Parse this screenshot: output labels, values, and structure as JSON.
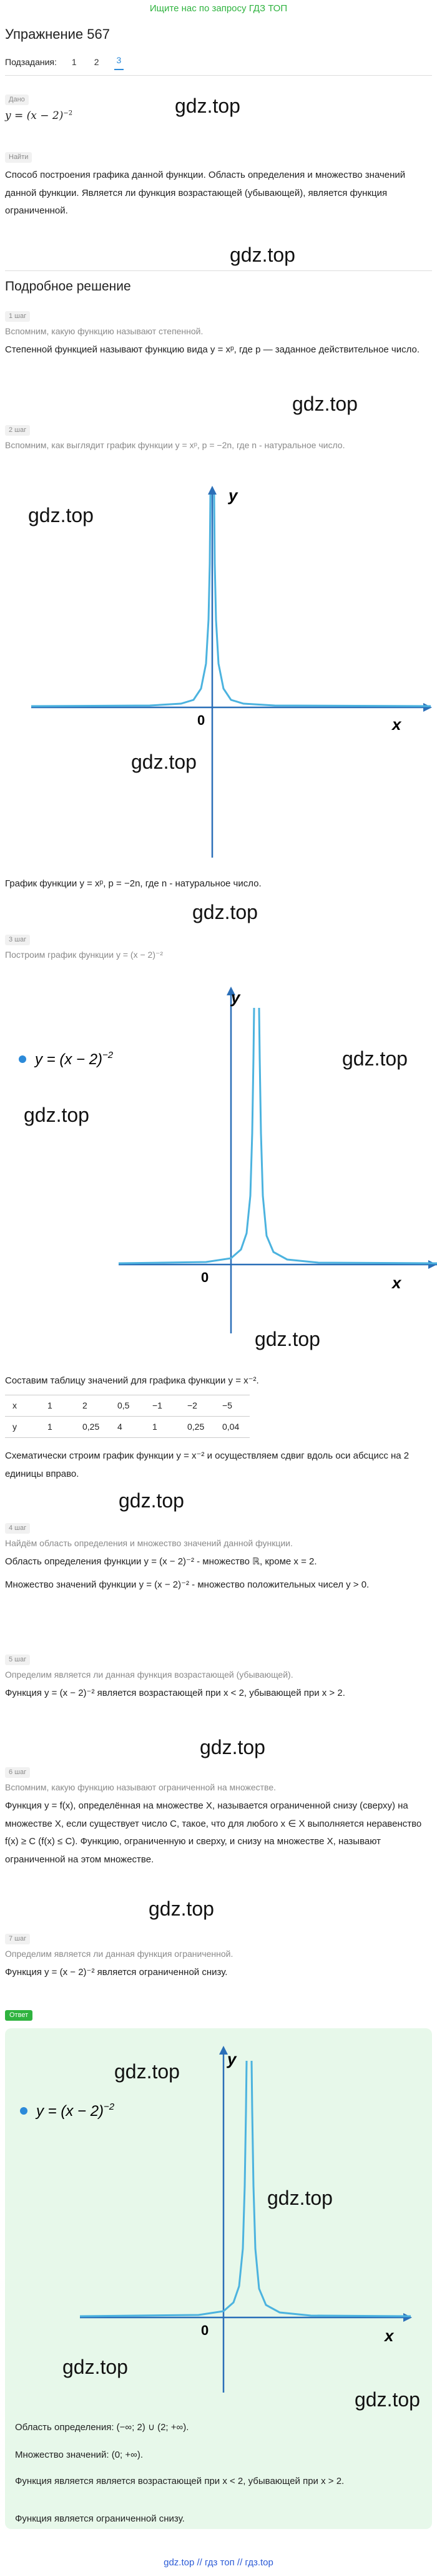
{
  "banner": "Ищите нас по запросу ГДЗ ТОП",
  "title": "Упражнение 567",
  "subtasks": {
    "label": "Подзадания:",
    "items": [
      "1",
      "2",
      "3"
    ],
    "active": "3"
  },
  "given": {
    "tag": "Дано",
    "formula": "y = (x − 2)",
    "exp": "−2"
  },
  "find": {
    "tag": "Найти",
    "text": "Способ построения графика данной функции. Область определения и множество значений данной функции. Является ли функция возрастающей (убывающей), является функция ограниченной."
  },
  "watermark": "gdz.top",
  "solution_title": "Подробное решение",
  "steps": {
    "s1": {
      "tag": "1 шаг",
      "hint": "Вспомним, какую функцию называют степенной.",
      "text": "Степенной функцией называют функцию вида y = xᵖ, где p — заданное действительное число."
    },
    "s2": {
      "tag": "2 шаг",
      "hint": "Вспомним, как выглядит график функции y = xᵖ, p = −2n, где n - натуральное число.",
      "caption": "График функции y = xᵖ, p = −2n, где n - натуральное число."
    },
    "s3": {
      "tag": "3 шаг",
      "hint": "Построим график функции y = (x − 2)⁻²",
      "table_intro": "Составим таблицу значений для графика функции y = x⁻².",
      "table_x": [
        "x",
        "1",
        "2",
        "0,5",
        "−1",
        "−2",
        "−5"
      ],
      "table_y": [
        "y",
        "1",
        "0,25",
        "4",
        "1",
        "0,25",
        "0,04"
      ],
      "after": "Схематически строим график функции y = x⁻² и осуществляем сдвиг вдоль оси абсцисс на 2 единицы вправо."
    },
    "s4": {
      "tag": "4 шаг",
      "hint": "Найдём область определения и множество значений данной функции.",
      "domain": "Область определения функции y = (x − 2)⁻² - множество ℝ, кроме x = 2.",
      "range": "Множество значений функции y = (x − 2)⁻² - множество положительных чисел y > 0."
    },
    "s5": {
      "tag": "5 шаг",
      "hint": "Определим является ли данная функция возрастающей (убывающей).",
      "text": "Функция y = (x − 2)⁻² является возрастающей при x < 2, убывающей при x > 2."
    },
    "s6": {
      "tag": "6 шаг",
      "hint": "Вспомним, какую функцию называют ограниченной на множестве.",
      "text": "Функция y = f(x), определённая на множестве X, называется ограниченной снизу (сверху) на множестве X, если существует число C, такое, что для любого x ∈ X выполняется неравенство f(x) ≥ C (f(x) ≤ C). Функцию, ограниченную и сверху, и снизу на множестве X, называют ограниченной на этом множестве."
    },
    "s7": {
      "tag": "7 шаг",
      "hint": "Определим является ли данная функция ограниченной.",
      "text": "Функция y = (x − 2)⁻² является ограниченной снизу."
    }
  },
  "graph": {
    "axis_x": "x",
    "axis_y": "y",
    "origin": "0",
    "legend": "y = (x − 2)",
    "legend_exp": "−2"
  },
  "answer": {
    "tag": "Ответ",
    "domain": "Область определения: (−∞; 2) ∪ (2; +∞).",
    "range": "Множество значений: (0; +∞).",
    "monotonic": "Функция является является возрастающей при x < 2, убывающей при x > 2.",
    "bounded": "Функция является ограниченной снизу."
  },
  "footer": "gdz.top // гдз топ // гдз.top",
  "colors": {
    "curve": "#4cb3df",
    "axis": "#2b6fb8",
    "accent": "#2c8ad9",
    "green": "#2fb33f"
  }
}
